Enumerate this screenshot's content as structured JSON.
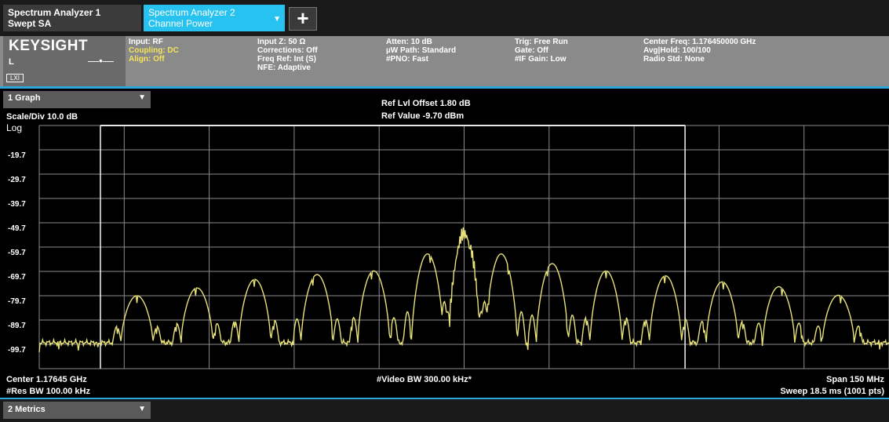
{
  "tabs": [
    {
      "line1": "Spectrum Analyzer 1",
      "line2": "Swept SA"
    },
    {
      "line1": "Spectrum Analyzer 2",
      "line2": "Channel Power"
    }
  ],
  "tab_dropdown_caret": "▼",
  "add_tab_label": "+",
  "brand": {
    "logo": "KEYSIGHT",
    "port": "L",
    "connector_icon": "—•—",
    "lxi_badge": "LXI"
  },
  "settings": {
    "group1": [
      "Input: RF",
      "Coupling: DC",
      "Align: Off"
    ],
    "group2": [
      "Input Z: 50 Ω",
      "Corrections: Off",
      "Freq Ref: Int (S)",
      "NFE: Adaptive"
    ],
    "group3": [
      "Atten: 10 dB",
      "µW Path: Standard",
      "#PNO: Fast"
    ],
    "group4": [
      "Trig: Free Run",
      "Gate: Off",
      "#IF Gain: Low"
    ],
    "group5": [
      "Center Freq: 1.176450000 GHz",
      "Avg|Hold: 100/100",
      "Radio Std: None"
    ]
  },
  "graph": {
    "view_selector": "1 Graph",
    "dropdown_caret": "▼",
    "scale_div": "Scale/Div 10.0 dB",
    "scale_type": "Log",
    "ref_lvl_offset": "Ref Lvl Offset 1.80 dB",
    "ref_value": "Ref Value -9.70 dBm"
  },
  "footer": {
    "center": "Center 1.17645 GHz",
    "res_bw": "#Res BW 100.00 kHz",
    "video_bw": "#Video BW 300.00 kHz*",
    "span": "Span 150 MHz",
    "sweep": "Sweep 18.5 ms (1001 pts)"
  },
  "metrics": {
    "selector": "2 Metrics",
    "dropdown_caret": "▼"
  },
  "colors": {
    "trace": "#e8e27a",
    "grid": "#8c8c8c",
    "active_tab": "#27c2ef",
    "divider": "#2fa6d8",
    "settings_panel": "#8a8a8a",
    "setting_highlight": "#f5e35a"
  },
  "chart_data": {
    "type": "line",
    "title": "",
    "xlabel": "",
    "ylabel": "",
    "y_tick_labels": [
      "-19.7",
      "-29.7",
      "-39.7",
      "-49.7",
      "-59.7",
      "-69.7",
      "-79.7",
      "-89.7",
      "-99.7"
    ],
    "y_unit": "dBm",
    "ylim": [
      -109.7,
      -9.7
    ],
    "x_unit": "MHz",
    "xlim": [
      1101.45,
      1251.45
    ],
    "integration_bw_markers_mhz": [
      1112.25,
      1215.45
    ],
    "grid": true,
    "series": [
      {
        "style": "envelope-lobes",
        "noise_floor_dbm": -99,
        "lobes": [
          {
            "center_mhz": 1118.7,
            "peak_dbm": -79.7
          },
          {
            "center_mhz": 1129.3,
            "peak_dbm": -76.5
          },
          {
            "center_mhz": 1139.5,
            "peak_dbm": -73.0
          },
          {
            "center_mhz": 1150.5,
            "peak_dbm": -71.0
          },
          {
            "center_mhz": 1160.5,
            "peak_dbm": -69.5
          },
          {
            "center_mhz": 1170.0,
            "peak_dbm": -62.5
          },
          {
            "center_mhz": 1176.5,
            "peak_dbm": -50.5
          },
          {
            "center_mhz": 1183.0,
            "peak_dbm": -62.5
          },
          {
            "center_mhz": 1192.0,
            "peak_dbm": -66.5
          },
          {
            "center_mhz": 1201.5,
            "peak_dbm": -69.5
          },
          {
            "center_mhz": 1212.0,
            "peak_dbm": -71.5
          },
          {
            "center_mhz": 1222.0,
            "peak_dbm": -74.0
          },
          {
            "center_mhz": 1232.0,
            "peak_dbm": -76.0
          },
          {
            "center_mhz": 1242.5,
            "peak_dbm": -79.5
          }
        ]
      }
    ]
  }
}
